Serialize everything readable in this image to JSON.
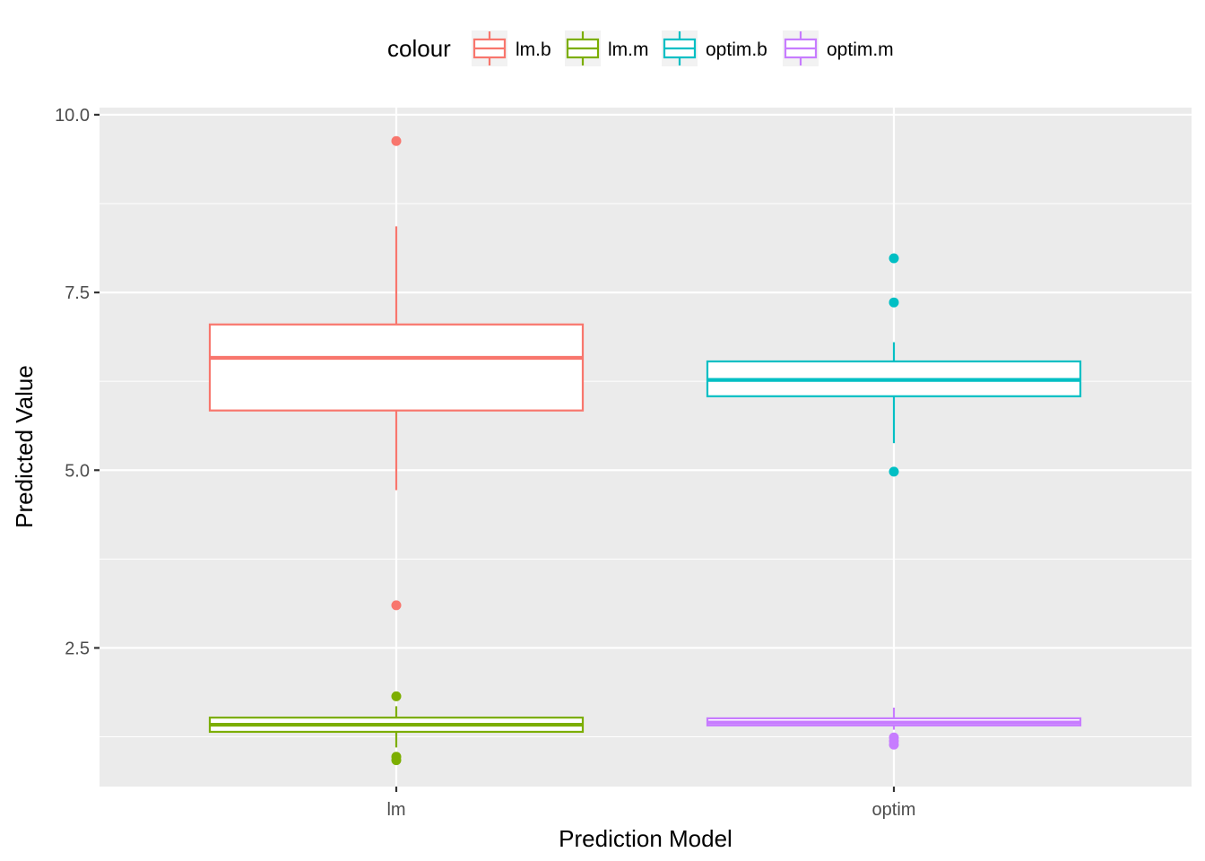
{
  "chart_data": {
    "type": "boxplot",
    "xlabel": "Prediction Model",
    "ylabel": "Predicted Value",
    "categories": [
      "lm",
      "optim"
    ],
    "ylim": [
      0.55,
      10.1
    ],
    "yticks": [
      2.5,
      5.0,
      7.5,
      10.0
    ],
    "ytick_labels": [
      "2.5",
      "5.0",
      "7.5",
      "10.0"
    ],
    "grid": true,
    "legend": {
      "title": "colour",
      "placement": "top",
      "entries": [
        {
          "key": "lm.b",
          "label": "lm.b",
          "color": "#F8766D"
        },
        {
          "key": "lm.m",
          "label": "lm.m",
          "color": "#7CAE00"
        },
        {
          "key": "optim.b",
          "label": "optim.b",
          "color": "#00BFC4"
        },
        {
          "key": "optim.m",
          "label": "optim.m",
          "color": "#C77CFF"
        }
      ]
    },
    "boxes": [
      {
        "name": "lm.b",
        "category": "lm",
        "color": "#F8766D",
        "fill": "#FFFFFF",
        "whisker_low": 4.72,
        "q1": 5.84,
        "median": 6.58,
        "q3": 7.05,
        "whisker_high": 8.43,
        "outliers": [
          9.63,
          3.1
        ]
      },
      {
        "name": "lm.m",
        "category": "lm",
        "color": "#7CAE00",
        "fill": "#FFFFFF",
        "whisker_low": 1.1,
        "q1": 1.32,
        "median": 1.42,
        "q3": 1.52,
        "whisker_high": 1.68,
        "outliers": [
          1.82,
          0.97,
          0.92
        ]
      },
      {
        "name": "optim.b",
        "category": "optim",
        "color": "#00BFC4",
        "fill": "#FFFFFF",
        "whisker_low": 5.38,
        "q1": 6.04,
        "median": 6.27,
        "q3": 6.53,
        "whisker_high": 6.8,
        "outliers": [
          7.98,
          7.36,
          4.98
        ]
      },
      {
        "name": "optim.m",
        "category": "optim",
        "color": "#C77CFF",
        "fill": "#FFFFFF",
        "whisker_low": 1.35,
        "q1": 1.41,
        "median": 1.45,
        "q3": 1.51,
        "whisker_high": 1.66,
        "outliers": [
          1.24,
          1.19,
          1.14
        ]
      }
    ]
  }
}
